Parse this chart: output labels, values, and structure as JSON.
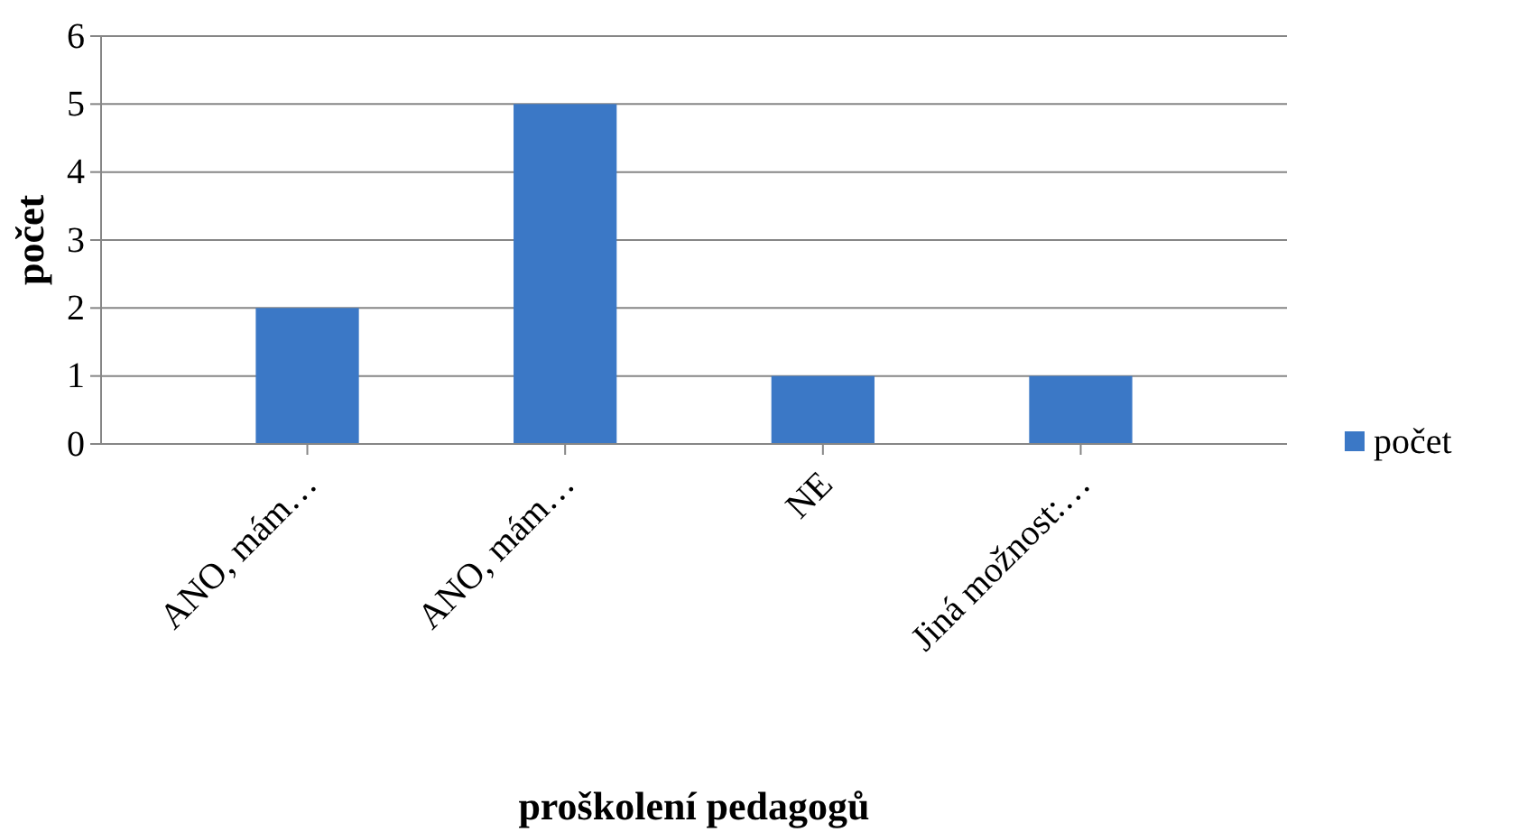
{
  "chart_data": {
    "type": "bar",
    "xlabel": "proškolení pedagogů",
    "ylabel": "počet",
    "categories": [
      "ANO, mám…",
      "ANO, mám…",
      "NE",
      "Jiná možnost:…"
    ],
    "series": [
      {
        "name": "počet",
        "color": "#3b78c6",
        "values": [
          2,
          5,
          1,
          1
        ]
      }
    ],
    "ylim": [
      0,
      6
    ],
    "yticks": [
      0,
      1,
      2,
      3,
      4,
      5,
      6
    ],
    "grid": "y",
    "legend": "right"
  }
}
